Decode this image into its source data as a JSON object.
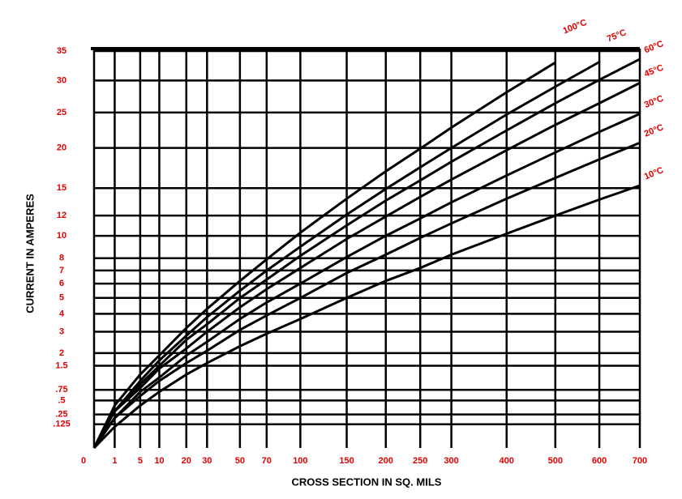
{
  "chart_data": {
    "type": "line",
    "x_label": "CROSS SECTION IN SQ. MILS",
    "y_label": "CURRENT IN AMPERES",
    "scale": "sqrt",
    "grid": true,
    "x": [
      0,
      1,
      5,
      10,
      20,
      30,
      50,
      70,
      100,
      150,
      200,
      250,
      300,
      400,
      500,
      600,
      700
    ],
    "xlim": [
      0,
      700
    ],
    "xticks": [
      0,
      1,
      5,
      10,
      20,
      30,
      50,
      70,
      100,
      150,
      200,
      250,
      300,
      400,
      500,
      600,
      700
    ],
    "ylim": [
      0,
      35
    ],
    "yticks": [
      {
        "value": 0.125,
        "label": ".125"
      },
      {
        "value": 0.25,
        "label": ".25"
      },
      {
        "value": 0.5,
        "label": ".5"
      },
      {
        "value": 0.75,
        "label": ".75"
      },
      1.5,
      2,
      3,
      4,
      5,
      6,
      7,
      8,
      10,
      12,
      15,
      20,
      25,
      30,
      35
    ],
    "label_color": "#e00000",
    "series": [
      {
        "name": "10°C",
        "color": "#000000",
        "values": [
          0,
          0.1,
          0.4,
          0.7,
          1.2,
          1.6,
          2.3,
          2.9,
          3.7,
          5.0,
          6.2,
          7.2,
          8.3,
          10.2,
          12.0,
          13.7,
          15.3
        ]
      },
      {
        "name": "20°C",
        "color": "#000000",
        "values": [
          0,
          0.2,
          0.6,
          1.0,
          1.6,
          2.1,
          3.1,
          3.9,
          5.0,
          6.8,
          8.3,
          9.8,
          11.2,
          13.8,
          16.2,
          18.5,
          20.7
        ]
      },
      {
        "name": "30°C",
        "color": "#000000",
        "values": [
          0,
          0.2,
          0.7,
          1.1,
          1.9,
          2.5,
          3.7,
          4.7,
          6.0,
          8.1,
          10.0,
          11.7,
          13.4,
          16.5,
          19.4,
          22.2,
          24.8
        ]
      },
      {
        "name": "45°C",
        "color": "#000000",
        "values": [
          0,
          0.3,
          0.8,
          1.4,
          2.2,
          3.0,
          4.4,
          5.6,
          7.2,
          9.7,
          11.9,
          14.0,
          16.0,
          19.7,
          23.2,
          26.4,
          29.6
        ]
      },
      {
        "name": "60°C",
        "color": "#000000",
        "values": [
          0,
          0.3,
          0.9,
          1.5,
          2.6,
          3.4,
          5.0,
          6.3,
          8.2,
          11.0,
          13.6,
          15.9,
          18.2,
          22.4,
          26.4,
          30.1,
          33.6
        ]
      },
      {
        "name": "75°C",
        "color": "#000000",
        "values": [
          0,
          0.3,
          1.0,
          1.7,
          2.8,
          3.8,
          5.5,
          7.0,
          9.0,
          12.1,
          14.9,
          17.5,
          20.0,
          24.7,
          29.0,
          33.1,
          null
        ]
      },
      {
        "name": "100°C",
        "color": "#000000",
        "values": [
          0,
          0.4,
          1.2,
          1.9,
          3.2,
          4.3,
          6.2,
          7.9,
          10.3,
          13.8,
          17.0,
          19.9,
          22.8,
          28.1,
          33.0,
          null,
          null
        ]
      }
    ]
  }
}
